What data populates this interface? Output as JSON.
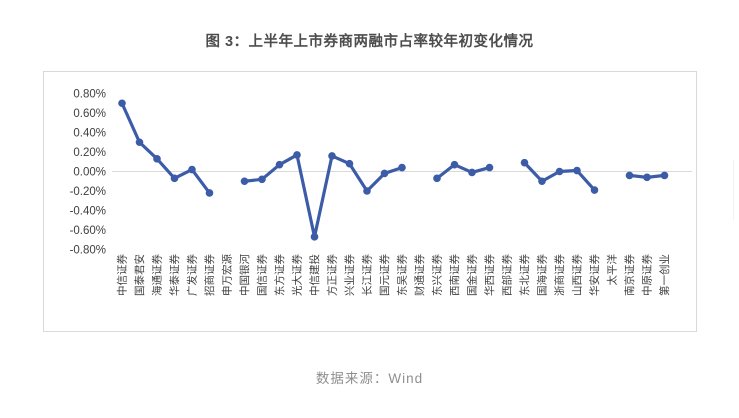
{
  "page": {
    "title": "图 3：上半年上市券商两融市占率较年初变化情况",
    "source": "数据来源：Wind"
  },
  "chart_data": {
    "type": "line",
    "title": "图 3：上半年上市券商两融市占率较年初变化情况",
    "categories": [
      "中信证券",
      "国泰君安",
      "海通证券",
      "华泰证券",
      "广发证券",
      "招商证券",
      "申万宏源",
      "中国银河",
      "国信证券",
      "东方证券",
      "光大证券",
      "中信建投",
      "方正证券",
      "兴业证券",
      "长江证券",
      "国元证券",
      "东吴证券",
      "财通证券",
      "东兴证券",
      "西南证券",
      "国金证券",
      "华西证券",
      "西部证券",
      "东北证券",
      "国海证券",
      "浙商证券",
      "山西证券",
      "华安证券",
      "太平洋",
      "南京证券",
      "中原证券",
      "第一创业"
    ],
    "values": [
      0.7,
      0.3,
      0.13,
      -0.07,
      0.02,
      -0.22,
      null,
      -0.1,
      -0.08,
      0.07,
      0.17,
      -0.67,
      0.16,
      0.08,
      -0.2,
      -0.02,
      0.04,
      null,
      -0.07,
      0.07,
      -0.01,
      0.04,
      null,
      0.09,
      -0.1,
      0.0,
      0.01,
      -0.19,
      null,
      -0.04,
      -0.06,
      -0.04
    ],
    "unit": "%",
    "xlabel": "",
    "ylabel": "",
    "ylim": [
      -0.8,
      0.8
    ],
    "ytick_step": 0.2,
    "ytick_labels": [
      "0.80%",
      "0.60%",
      "0.40%",
      "0.20%",
      "0.00%",
      "-0.20%",
      "-0.40%",
      "-0.60%",
      "-0.80%"
    ],
    "grid": "zero-line-only",
    "legend_position": "none",
    "line_color": "#3c5ca8",
    "gridline_color": "#d9d9d9",
    "axis_text_color": "#3f3f3f",
    "marker": "circle"
  }
}
